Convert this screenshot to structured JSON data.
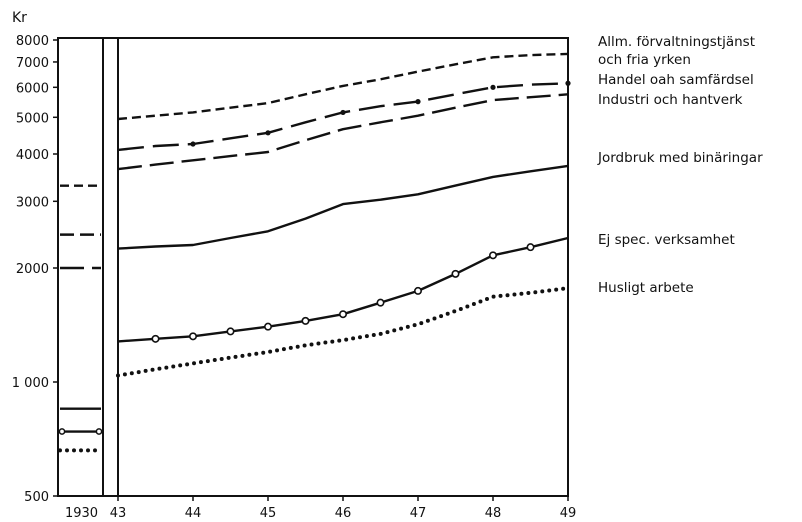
{
  "chart_data": {
    "type": "line",
    "ylabel": "Kr",
    "yscale": "log",
    "ylim": [
      500,
      8000
    ],
    "yticks": [
      "8000",
      "7000",
      "6000",
      "5000",
      "4000",
      "3000",
      "2000",
      "1 000",
      "500"
    ],
    "xticks": [
      "1930",
      "43",
      "44",
      "45",
      "46",
      "47",
      "48",
      "49"
    ],
    "x": [
      1943,
      1943.5,
      1944,
      1944.5,
      1945,
      1945.5,
      1946,
      1946.5,
      1947,
      1947.5,
      1948,
      1948.5,
      1949
    ],
    "grid": false,
    "legend": "right",
    "series": [
      {
        "name": "Allm. förvaltningstjänst och fria yrken",
        "name_lines": [
          "Allm. förvaltningstjänst",
          "och fria yrken"
        ],
        "style": "short-dash",
        "value_1930": 3300,
        "values": [
          4950,
          5050,
          5150,
          5300,
          5450,
          5750,
          6050,
          6300,
          6600,
          6900,
          7200,
          7300,
          7350
        ]
      },
      {
        "name": "Handel oah samfärdsel",
        "name_lines": [
          "Handel oah samfärdsel"
        ],
        "style": "dash-dot",
        "value_1930": 2450,
        "values": [
          4100,
          4200,
          4250,
          4400,
          4550,
          4850,
          5150,
          5350,
          5500,
          5750,
          6000,
          6100,
          6150
        ]
      },
      {
        "name": "Industri och hantverk",
        "name_lines": [
          "Industri och hantverk"
        ],
        "style": "long-dash",
        "value_1930": 2000,
        "values": [
          3650,
          3750,
          3850,
          3950,
          4050,
          4350,
          4650,
          4850,
          5050,
          5300,
          5550,
          5650,
          5750
        ]
      },
      {
        "name": "Jordbruk med binäringar",
        "name_lines": [
          "Jordbruk med binäringar"
        ],
        "style": "solid",
        "value_1930": 850,
        "values": [
          2250,
          2280,
          2300,
          2400,
          2500,
          2700,
          2950,
          3030,
          3130,
          3300,
          3480,
          3600,
          3720
        ]
      },
      {
        "name": "Ej spec. verksamhet",
        "name_lines": [
          "Ej spec. verksamhet"
        ],
        "style": "solid-circles",
        "value_1930": 740,
        "values": [
          1280,
          1300,
          1320,
          1360,
          1400,
          1450,
          1510,
          1620,
          1740,
          1930,
          2160,
          2270,
          2400
        ]
      },
      {
        "name": "Husligt arbete",
        "name_lines": [
          "Husligt arbete"
        ],
        "style": "dotted",
        "value_1930": 660,
        "values": [
          1040,
          1080,
          1120,
          1160,
          1200,
          1250,
          1290,
          1340,
          1420,
          1540,
          1680,
          1720,
          1770
        ]
      }
    ]
  }
}
